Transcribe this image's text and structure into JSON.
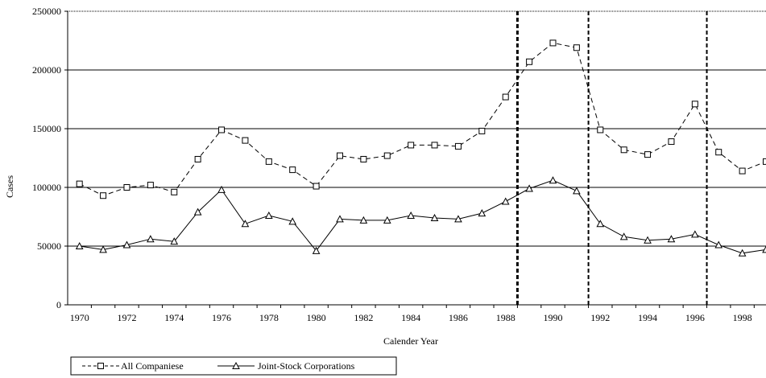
{
  "chart_data": {
    "type": "line",
    "title": "",
    "xlabel": "Calender Year",
    "ylabel": "Cases",
    "x": [
      1970,
      1971,
      1972,
      1973,
      1974,
      1975,
      1976,
      1977,
      1978,
      1979,
      1980,
      1981,
      1982,
      1983,
      1984,
      1985,
      1986,
      1987,
      1988,
      1989,
      1990,
      1991,
      1992,
      1993,
      1994,
      1995,
      1996,
      1997,
      1998,
      1999
    ],
    "xtick_labels": [
      "1970",
      "1972",
      "1974",
      "1976",
      "1978",
      "1980",
      "1982",
      "1984",
      "1986",
      "1988",
      "1990",
      "1992",
      "1994",
      "1996",
      "1998"
    ],
    "ytick_labels": [
      "0",
      "50000",
      "100000",
      "150000",
      "200000",
      "250000"
    ],
    "ylim": [
      0,
      250000
    ],
    "xlim": [
      1969.5,
      1999
    ],
    "grid": "horizontal",
    "legend_position": "bottom-left",
    "vertical_markers": [
      1988.5,
      1991.5,
      1996.5
    ],
    "series": [
      {
        "name": "All Companiese",
        "style": "dashed",
        "marker": "square",
        "values": [
          103000,
          93000,
          100000,
          102000,
          96000,
          124000,
          149000,
          140000,
          122000,
          115000,
          101000,
          127000,
          124000,
          127000,
          136000,
          136000,
          135000,
          148000,
          177000,
          207000,
          223000,
          219000,
          149000,
          132000,
          128000,
          139000,
          171000,
          130000,
          114000,
          122000
        ]
      },
      {
        "name": "Joint-Stock Corporations",
        "style": "solid",
        "marker": "triangle",
        "values": [
          50000,
          47000,
          51000,
          56000,
          54000,
          79000,
          98000,
          69000,
          76000,
          71000,
          46000,
          73000,
          72000,
          72000,
          76000,
          74000,
          73000,
          78000,
          88000,
          99000,
          106000,
          97000,
          69000,
          58000,
          55000,
          56000,
          60000,
          51000,
          44000,
          47000
        ]
      }
    ]
  },
  "colors": {
    "line": "#000000",
    "grid": "#000000",
    "background": "#ffffff"
  }
}
